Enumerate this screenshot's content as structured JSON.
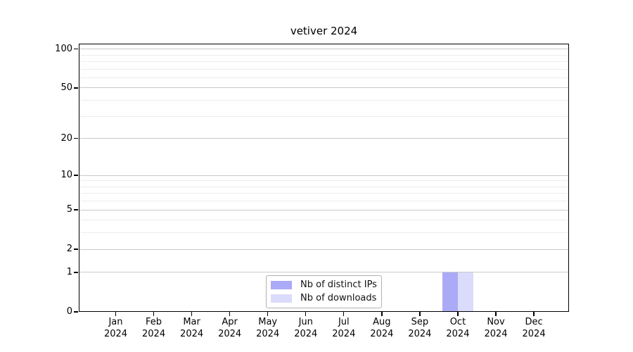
{
  "title": "vetiver 2024",
  "chart_data": {
    "type": "bar",
    "title": "vetiver 2024",
    "categories": [
      "Jan 2024",
      "Feb 2024",
      "Mar 2024",
      "Apr 2024",
      "May 2024",
      "Jun 2024",
      "Jul 2024",
      "Aug 2024",
      "Sep 2024",
      "Oct 2024",
      "Nov 2024",
      "Dec 2024"
    ],
    "x_tick_labels": [
      [
        "Jan",
        "2024"
      ],
      [
        "Feb",
        "2024"
      ],
      [
        "Mar",
        "2024"
      ],
      [
        "Apr",
        "2024"
      ],
      [
        "May",
        "2024"
      ],
      [
        "Jun",
        "2024"
      ],
      [
        "Jul",
        "2024"
      ],
      [
        "Aug",
        "2024"
      ],
      [
        "Sep",
        "2024"
      ],
      [
        "Oct",
        "2024"
      ],
      [
        "Nov",
        "2024"
      ],
      [
        "Dec",
        "2024"
      ]
    ],
    "series": [
      {
        "name": "Nb of distinct IPs",
        "color": "#abaaf7",
        "values": [
          0,
          0,
          0,
          0,
          0,
          0,
          0,
          0,
          0,
          1,
          0,
          0
        ]
      },
      {
        "name": "Nb of downloads",
        "color": "#dbdbfb",
        "values": [
          0,
          0,
          0,
          0,
          0,
          0,
          0,
          0,
          0,
          1,
          0,
          0
        ]
      }
    ],
    "yscale": "log1p",
    "ylim": [
      0,
      110
    ],
    "y_major_ticks": [
      0,
      1,
      2,
      5,
      10,
      20,
      50,
      100
    ],
    "y_minor_gridlines": [
      3,
      4,
      6,
      7,
      8,
      9,
      30,
      40,
      60,
      70,
      80,
      90
    ],
    "grid": "horizontal",
    "legend_position": "bottom-center"
  },
  "legend": {
    "items": [
      "Nb of distinct IPs",
      "Nb of downloads"
    ]
  },
  "colors": {
    "bar_distinct_ips": "#abaaf7",
    "bar_downloads": "#dbdbfb",
    "grid_major": "#c9c9c9",
    "grid_minor": "#ededed",
    "axis": "#000000",
    "legend_border": "#b0b0b0",
    "text": "#000000",
    "background": "#ffffff"
  }
}
